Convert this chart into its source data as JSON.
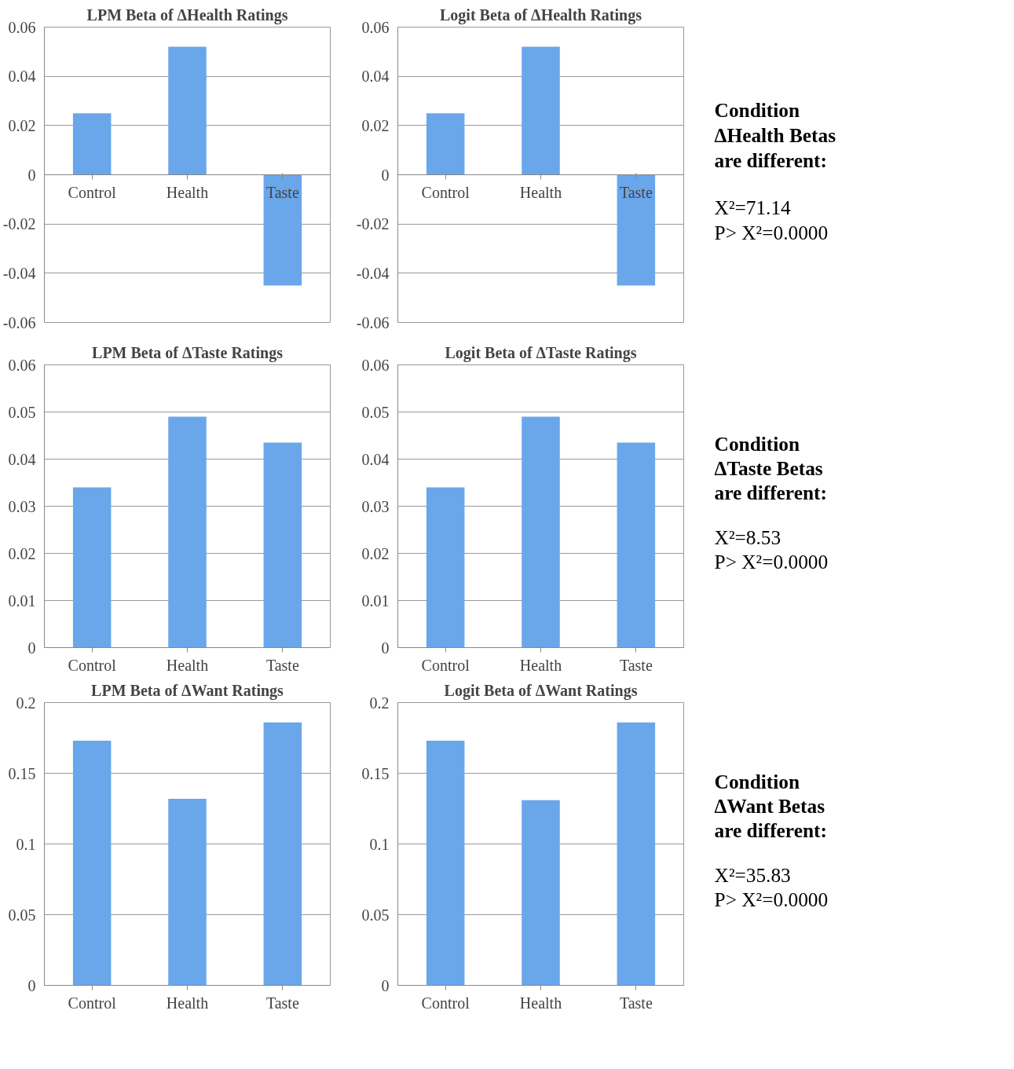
{
  "chart_data": [
    {
      "type": "bar",
      "title": "LPM Beta of ΔHealth Ratings",
      "categories": [
        "Control",
        "Health",
        "Taste"
      ],
      "values": [
        0.025,
        0.052,
        -0.045
      ],
      "color": "#6aa6ea",
      "ylim": [
        -0.06,
        0.06
      ],
      "yticks": [
        -0.06,
        -0.04,
        -0.02,
        0,
        0.02,
        0.04,
        0.06
      ],
      "grid": "y"
    },
    {
      "type": "bar",
      "title": "Logit Beta of ΔHealth Ratings",
      "categories": [
        "Control",
        "Health",
        "Taste"
      ],
      "values": [
        0.025,
        0.052,
        -0.045
      ],
      "color": "#6aa6ea",
      "ylim": [
        -0.06,
        0.06
      ],
      "yticks": [
        -0.06,
        -0.04,
        -0.02,
        0,
        0.02,
        0.04,
        0.06
      ],
      "grid": "y"
    },
    {
      "type": "other",
      "annotations": [
        "Condition",
        "ΔHealth Betas",
        "are different:",
        "X²=71.14",
        "P> X²=0.0000"
      ]
    },
    {
      "type": "bar",
      "title": "LPM Beta of ΔTaste Ratings",
      "categories": [
        "Control",
        "Health",
        "Taste"
      ],
      "values": [
        0.034,
        0.049,
        0.0435
      ],
      "color": "#6aa6ea",
      "ylim": [
        0,
        0.06
      ],
      "yticks": [
        0,
        0.01,
        0.02,
        0.03,
        0.04,
        0.05,
        0.06
      ],
      "grid": "y"
    },
    {
      "type": "bar",
      "title": "Logit Beta of ΔTaste Ratings",
      "categories": [
        "Control",
        "Health",
        "Taste"
      ],
      "values": [
        0.034,
        0.049,
        0.0435
      ],
      "color": "#6aa6ea",
      "ylim": [
        0,
        0.06
      ],
      "yticks": [
        0,
        0.01,
        0.02,
        0.03,
        0.04,
        0.05,
        0.06
      ],
      "grid": "y"
    },
    {
      "type": "other",
      "annotations": [
        "Condition",
        "ΔTaste Betas",
        "are different:",
        "X²=8.53",
        "P> X²=0.0000"
      ]
    },
    {
      "type": "bar",
      "title": "LPM Beta of ΔWant Ratings",
      "categories": [
        "Control",
        "Health",
        "Taste"
      ],
      "values": [
        0.173,
        0.132,
        0.186
      ],
      "color": "#6aa6ea",
      "ylim": [
        0,
        0.2
      ],
      "yticks": [
        0,
        0.05,
        0.1,
        0.15,
        0.2
      ],
      "grid": "y"
    },
    {
      "type": "bar",
      "title": "Logit Beta of ΔWant Ratings",
      "categories": [
        "Control",
        "Health",
        "Taste"
      ],
      "values": [
        0.173,
        0.131,
        0.186
      ],
      "color": "#6aa6ea",
      "ylim": [
        0,
        0.2
      ],
      "yticks": [
        0,
        0.05,
        0.1,
        0.15,
        0.2
      ],
      "grid": "y"
    },
    {
      "type": "other",
      "annotations": [
        "Condition",
        "ΔWant Betas",
        "are different:",
        "X²=35.83",
        "P> X²=0.0000"
      ]
    }
  ]
}
